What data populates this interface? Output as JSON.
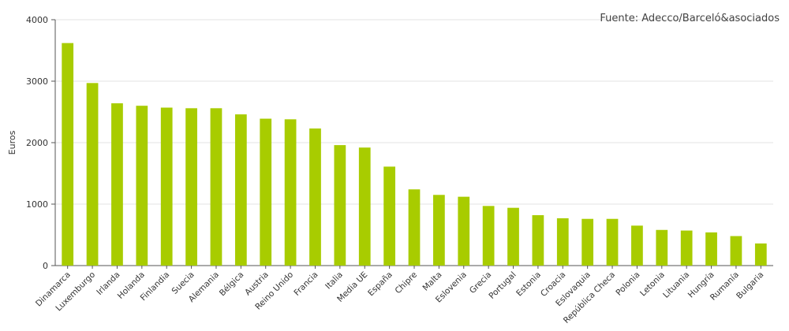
{
  "source_note": "Fuente: Adecco/Barceló&asociados",
  "chart_data": {
    "type": "bar",
    "ylabel": "Euros",
    "ylim": [
      0,
      4000
    ],
    "yticks": [
      0,
      1000,
      2000,
      3000,
      4000
    ],
    "ytick_labels": [
      "0",
      "1000",
      "2000",
      "3000",
      "4000"
    ],
    "grid": true,
    "bar_color": "#a8cc00",
    "categories": [
      "Dinamarca",
      "Luxemburgo",
      "Irlanda",
      "Holanda",
      "Finlandia",
      "Suecia",
      "Alemania",
      "Bélgica",
      "Austria",
      "Reino Unido",
      "Francia",
      "Italia",
      "Media UE",
      "España",
      "Chipre",
      "Malta",
      "Eslovenia",
      "Grecia",
      "Portugal",
      "Estonia",
      "Croacia",
      "Eslovaquia",
      "República Checa",
      "Polonia",
      "Letonia",
      "Lituania",
      "Hungría",
      "Rumanía",
      "Bulgaria"
    ],
    "values": [
      3620,
      2970,
      2640,
      2600,
      2570,
      2560,
      2560,
      2460,
      2390,
      2380,
      2230,
      1960,
      1920,
      1610,
      1240,
      1150,
      1120,
      970,
      940,
      820,
      770,
      760,
      760,
      650,
      580,
      570,
      540,
      480,
      360
    ]
  }
}
